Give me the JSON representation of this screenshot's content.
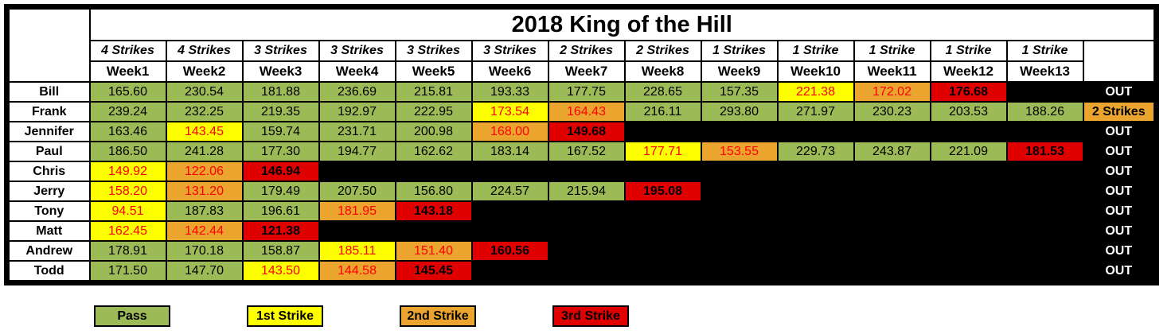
{
  "title": "2018 King of the Hill",
  "colors": {
    "pass": "#9CBA55",
    "s1": "#FFFF00",
    "s2": "#EBA42D",
    "s3": "#E10000",
    "empty": "#000000",
    "pass_text": "#000000",
    "strike_text": "#FF0000",
    "s3_text": "#000000",
    "out_bg": "#000000",
    "out_text": "#FFFFFF"
  },
  "columns": [
    {
      "strikes": "4 Strikes",
      "week": "Week1"
    },
    {
      "strikes": "4 Strikes",
      "week": "Week2"
    },
    {
      "strikes": "3 Strikes",
      "week": "Week3"
    },
    {
      "strikes": "3 Strikes",
      "week": "Week4"
    },
    {
      "strikes": "3 Strikes",
      "week": "Week5"
    },
    {
      "strikes": "3 Strikes",
      "week": "Week6"
    },
    {
      "strikes": "2 Strikes",
      "week": "Week7"
    },
    {
      "strikes": "2 Strikes",
      "week": "Week8"
    },
    {
      "strikes": "1 Strikes",
      "week": "Week9"
    },
    {
      "strikes": "1 Strike",
      "week": "Week10"
    },
    {
      "strikes": "1 Strike",
      "week": "Week11"
    },
    {
      "strikes": "1 Strike",
      "week": "Week12"
    },
    {
      "strikes": "1 Strike",
      "week": "Week13"
    }
  ],
  "players": [
    {
      "name": "Bill",
      "status": "OUT",
      "status_state": "out",
      "cells": [
        {
          "v": "165.60",
          "s": "pass"
        },
        {
          "v": "230.54",
          "s": "pass"
        },
        {
          "v": "181.88",
          "s": "pass"
        },
        {
          "v": "236.69",
          "s": "pass"
        },
        {
          "v": "215.81",
          "s": "pass"
        },
        {
          "v": "193.33",
          "s": "pass"
        },
        {
          "v": "177.75",
          "s": "pass"
        },
        {
          "v": "228.65",
          "s": "pass"
        },
        {
          "v": "157.35",
          "s": "pass"
        },
        {
          "v": "221.38",
          "s": "s1"
        },
        {
          "v": "172.02",
          "s": "s2"
        },
        {
          "v": "176.68",
          "s": "s3"
        },
        {
          "v": "",
          "s": "empty"
        }
      ]
    },
    {
      "name": "Frank",
      "status": "2 Strikes",
      "status_state": "s2",
      "cells": [
        {
          "v": "239.24",
          "s": "pass"
        },
        {
          "v": "232.25",
          "s": "pass"
        },
        {
          "v": "219.35",
          "s": "pass"
        },
        {
          "v": "192.97",
          "s": "pass"
        },
        {
          "v": "222.95",
          "s": "pass"
        },
        {
          "v": "173.54",
          "s": "s1"
        },
        {
          "v": "164.43",
          "s": "s2"
        },
        {
          "v": "216.11",
          "s": "pass"
        },
        {
          "v": "293.80",
          "s": "pass"
        },
        {
          "v": "271.97",
          "s": "pass"
        },
        {
          "v": "230.23",
          "s": "pass"
        },
        {
          "v": "203.53",
          "s": "pass"
        },
        {
          "v": "188.26",
          "s": "pass"
        }
      ]
    },
    {
      "name": "Jennifer",
      "status": "OUT",
      "status_state": "out",
      "cells": [
        {
          "v": "163.46",
          "s": "pass"
        },
        {
          "v": "143.45",
          "s": "s1"
        },
        {
          "v": "159.74",
          "s": "pass"
        },
        {
          "v": "231.71",
          "s": "pass"
        },
        {
          "v": "200.98",
          "s": "pass"
        },
        {
          "v": "168.00",
          "s": "s2"
        },
        {
          "v": "149.68",
          "s": "s3"
        },
        {
          "v": "",
          "s": "empty"
        },
        {
          "v": "",
          "s": "empty"
        },
        {
          "v": "",
          "s": "empty"
        },
        {
          "v": "",
          "s": "empty"
        },
        {
          "v": "",
          "s": "empty"
        },
        {
          "v": "",
          "s": "empty"
        }
      ]
    },
    {
      "name": "Paul",
      "status": "OUT",
      "status_state": "out",
      "cells": [
        {
          "v": "186.50",
          "s": "pass"
        },
        {
          "v": "241.28",
          "s": "pass"
        },
        {
          "v": "177.30",
          "s": "pass"
        },
        {
          "v": "194.77",
          "s": "pass"
        },
        {
          "v": "162.62",
          "s": "pass"
        },
        {
          "v": "183.14",
          "s": "pass"
        },
        {
          "v": "167.52",
          "s": "pass"
        },
        {
          "v": "177.71",
          "s": "s1"
        },
        {
          "v": "153.55",
          "s": "s2"
        },
        {
          "v": "229.73",
          "s": "pass"
        },
        {
          "v": "243.87",
          "s": "pass"
        },
        {
          "v": "221.09",
          "s": "pass"
        },
        {
          "v": "181.53",
          "s": "s3"
        }
      ]
    },
    {
      "name": "Chris",
      "status": "OUT",
      "status_state": "out",
      "cells": [
        {
          "v": "149.92",
          "s": "s1"
        },
        {
          "v": "122.06",
          "s": "s2"
        },
        {
          "v": "146.94",
          "s": "s3"
        },
        {
          "v": "",
          "s": "empty"
        },
        {
          "v": "",
          "s": "empty"
        },
        {
          "v": "",
          "s": "empty"
        },
        {
          "v": "",
          "s": "empty"
        },
        {
          "v": "",
          "s": "empty"
        },
        {
          "v": "",
          "s": "empty"
        },
        {
          "v": "",
          "s": "empty"
        },
        {
          "v": "",
          "s": "empty"
        },
        {
          "v": "",
          "s": "empty"
        },
        {
          "v": "",
          "s": "empty"
        }
      ]
    },
    {
      "name": "Jerry",
      "status": "OUT",
      "status_state": "out",
      "cells": [
        {
          "v": "158.20",
          "s": "s1"
        },
        {
          "v": "131.20",
          "s": "s2"
        },
        {
          "v": "179.49",
          "s": "pass"
        },
        {
          "v": "207.50",
          "s": "pass"
        },
        {
          "v": "156.80",
          "s": "pass"
        },
        {
          "v": "224.57",
          "s": "pass"
        },
        {
          "v": "215.94",
          "s": "pass"
        },
        {
          "v": "195.08",
          "s": "s3"
        },
        {
          "v": "",
          "s": "empty"
        },
        {
          "v": "",
          "s": "empty"
        },
        {
          "v": "",
          "s": "empty"
        },
        {
          "v": "",
          "s": "empty"
        },
        {
          "v": "",
          "s": "empty"
        }
      ]
    },
    {
      "name": "Tony",
      "status": "OUT",
      "status_state": "out",
      "cells": [
        {
          "v": "94.51",
          "s": "s1"
        },
        {
          "v": "187.83",
          "s": "pass"
        },
        {
          "v": "196.61",
          "s": "pass"
        },
        {
          "v": "181.95",
          "s": "s2"
        },
        {
          "v": "143.18",
          "s": "s3"
        },
        {
          "v": "",
          "s": "empty"
        },
        {
          "v": "",
          "s": "empty"
        },
        {
          "v": "",
          "s": "empty"
        },
        {
          "v": "",
          "s": "empty"
        },
        {
          "v": "",
          "s": "empty"
        },
        {
          "v": "",
          "s": "empty"
        },
        {
          "v": "",
          "s": "empty"
        },
        {
          "v": "",
          "s": "empty"
        }
      ]
    },
    {
      "name": "Matt",
      "status": "OUT",
      "status_state": "out",
      "cells": [
        {
          "v": "162.45",
          "s": "s1"
        },
        {
          "v": "142.44",
          "s": "s2"
        },
        {
          "v": "121.38",
          "s": "s3"
        },
        {
          "v": "",
          "s": "empty"
        },
        {
          "v": "",
          "s": "empty"
        },
        {
          "v": "",
          "s": "empty"
        },
        {
          "v": "",
          "s": "empty"
        },
        {
          "v": "",
          "s": "empty"
        },
        {
          "v": "",
          "s": "empty"
        },
        {
          "v": "",
          "s": "empty"
        },
        {
          "v": "",
          "s": "empty"
        },
        {
          "v": "",
          "s": "empty"
        },
        {
          "v": "",
          "s": "empty"
        }
      ]
    },
    {
      "name": "Andrew",
      "status": "OUT",
      "status_state": "out",
      "cells": [
        {
          "v": "178.91",
          "s": "pass"
        },
        {
          "v": "170.18",
          "s": "pass"
        },
        {
          "v": "158.87",
          "s": "pass"
        },
        {
          "v": "185.11",
          "s": "s1"
        },
        {
          "v": "151.40",
          "s": "s2"
        },
        {
          "v": "160.56",
          "s": "s3"
        },
        {
          "v": "",
          "s": "empty"
        },
        {
          "v": "",
          "s": "empty"
        },
        {
          "v": "",
          "s": "empty"
        },
        {
          "v": "",
          "s": "empty"
        },
        {
          "v": "",
          "s": "empty"
        },
        {
          "v": "",
          "s": "empty"
        },
        {
          "v": "",
          "s": "empty"
        }
      ]
    },
    {
      "name": "Todd",
      "status": "OUT",
      "status_state": "out",
      "cells": [
        {
          "v": "171.50",
          "s": "pass"
        },
        {
          "v": "147.70",
          "s": "pass"
        },
        {
          "v": "143.50",
          "s": "s1"
        },
        {
          "v": "144.58",
          "s": "s2"
        },
        {
          "v": "145.45",
          "s": "s3"
        },
        {
          "v": "",
          "s": "empty"
        },
        {
          "v": "",
          "s": "empty"
        },
        {
          "v": "",
          "s": "empty"
        },
        {
          "v": "",
          "s": "empty"
        },
        {
          "v": "",
          "s": "empty"
        },
        {
          "v": "",
          "s": "empty"
        },
        {
          "v": "",
          "s": "empty"
        },
        {
          "v": "",
          "s": "empty"
        }
      ]
    }
  ],
  "legend": [
    {
      "label": "Pass",
      "state": "pass"
    },
    {
      "label": "1st Strike",
      "state": "s1"
    },
    {
      "label": "2nd Strike",
      "state": "s2"
    },
    {
      "label": "3rd Strike",
      "state": "s3"
    }
  ]
}
